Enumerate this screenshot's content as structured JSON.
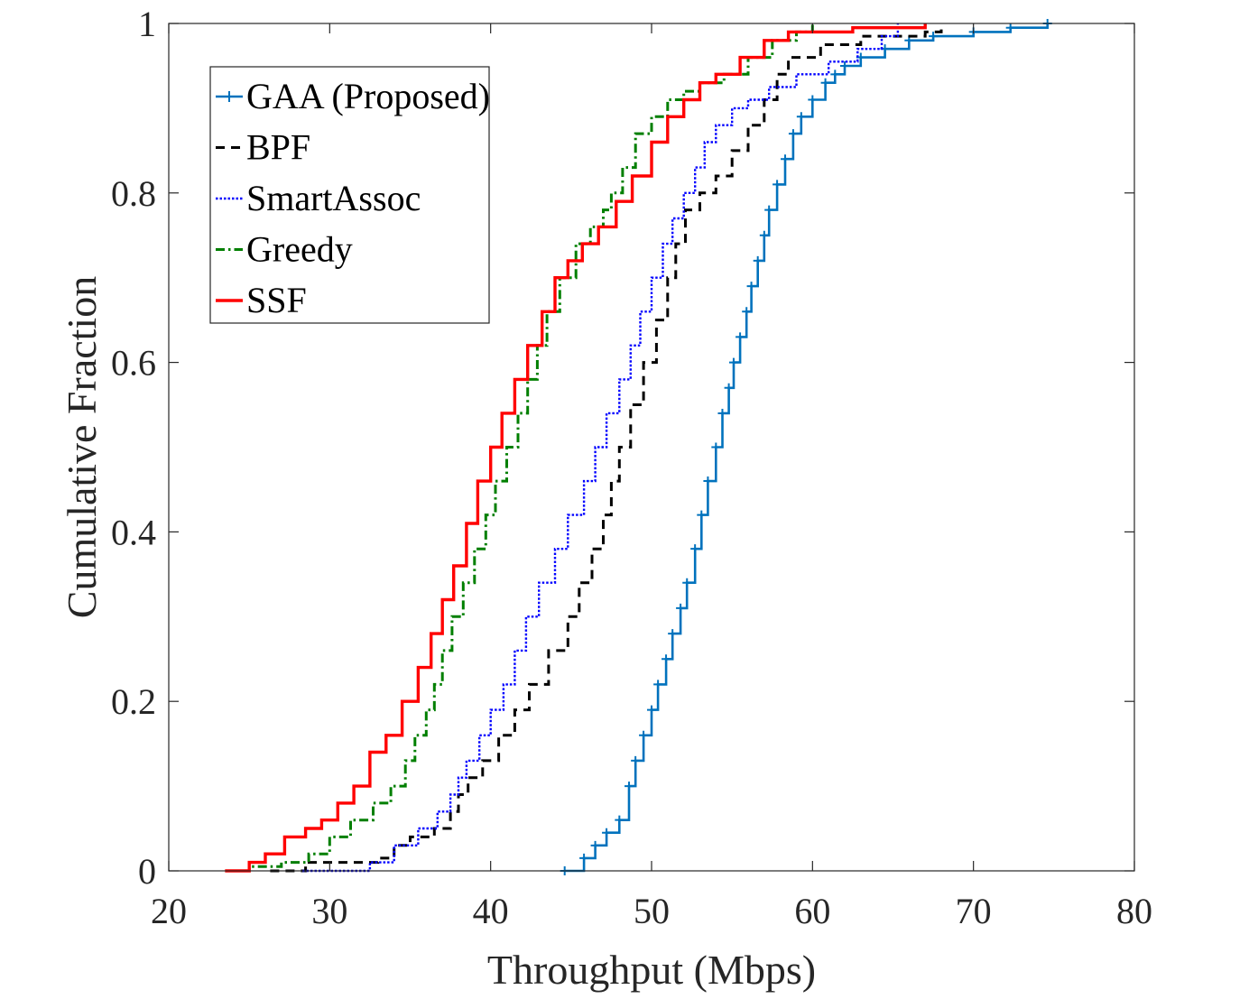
{
  "chart_data": {
    "type": "line",
    "title": "",
    "xlabel": "Throughput (Mbps)",
    "ylabel": "Cumulative Fraction",
    "xlim": [
      20,
      80
    ],
    "ylim": [
      0,
      1
    ],
    "xticks": [
      20,
      30,
      40,
      50,
      60,
      70,
      80
    ],
    "yticks": [
      0,
      0.2,
      0.4,
      0.6,
      0.8,
      1
    ],
    "xtick_labels": [
      "20",
      "30",
      "40",
      "50",
      "60",
      "70",
      "80"
    ],
    "ytick_labels": [
      "0",
      "0.2",
      "0.4",
      "0.6",
      "0.8",
      "1"
    ],
    "grid": false,
    "legend_position": "top-left",
    "series": [
      {
        "name": "GAA (Proposed)",
        "color": "#0072BD",
        "style": "solid-plus",
        "x": [
          44.6,
          45.8,
          46.5,
          47.2,
          48.0,
          48.6,
          49.0,
          49.5,
          50.0,
          50.4,
          50.9,
          51.3,
          51.8,
          52.2,
          52.7,
          53.1,
          53.5,
          54.0,
          54.4,
          54.8,
          55.1,
          55.5,
          55.9,
          56.2,
          56.6,
          57.0,
          57.3,
          57.8,
          58.3,
          58.8,
          59.3,
          60.0,
          60.8,
          61.4,
          62.0,
          63.0,
          64.5,
          66.0,
          67.5,
          70.0,
          72.3,
          74.6
        ],
        "y": [
          0.0,
          0.015,
          0.03,
          0.045,
          0.06,
          0.1,
          0.13,
          0.16,
          0.19,
          0.22,
          0.25,
          0.28,
          0.31,
          0.34,
          0.38,
          0.42,
          0.46,
          0.5,
          0.54,
          0.57,
          0.6,
          0.63,
          0.66,
          0.69,
          0.72,
          0.75,
          0.78,
          0.81,
          0.84,
          0.87,
          0.89,
          0.91,
          0.93,
          0.94,
          0.95,
          0.96,
          0.97,
          0.98,
          0.985,
          0.99,
          0.995,
          1.0
        ]
      },
      {
        "name": "BPF",
        "color": "#000000",
        "style": "dashed",
        "x": [
          26.3,
          28.5,
          31.0,
          33.0,
          34.0,
          35.0,
          36.5,
          37.5,
          38.0,
          38.6,
          39.5,
          40.5,
          41.5,
          42.4,
          43.6,
          44.8,
          45.5,
          46.3,
          47.0,
          47.5,
          48.0,
          48.7,
          49.5,
          50.3,
          51.0,
          51.5,
          52.1,
          53.0,
          54.0,
          55.0,
          56.0,
          57.0,
          57.8,
          58.5,
          60.5,
          63.0,
          67.0,
          68.0
        ],
        "y": [
          0.0,
          0.01,
          0.01,
          0.015,
          0.03,
          0.04,
          0.05,
          0.07,
          0.09,
          0.11,
          0.13,
          0.16,
          0.19,
          0.22,
          0.26,
          0.3,
          0.34,
          0.38,
          0.42,
          0.46,
          0.5,
          0.55,
          0.6,
          0.65,
          0.7,
          0.74,
          0.78,
          0.8,
          0.82,
          0.85,
          0.88,
          0.91,
          0.94,
          0.96,
          0.975,
          0.985,
          0.99,
          1.0
        ]
      },
      {
        "name": "SmartAssoc",
        "color": "#0000FF",
        "style": "dotted",
        "x": [
          28.3,
          32.5,
          34.0,
          35.5,
          36.7,
          37.5,
          38.0,
          38.5,
          39.3,
          40.0,
          40.8,
          41.5,
          42.2,
          43.0,
          44.0,
          44.8,
          45.8,
          46.5,
          47.2,
          48.0,
          48.7,
          49.3,
          50.0,
          50.7,
          51.3,
          52.0,
          52.7,
          53.3,
          54.0,
          55.0,
          56.0,
          57.3,
          59.0,
          61.0,
          62.8,
          64.3,
          65.3
        ],
        "y": [
          0.0,
          0.01,
          0.03,
          0.05,
          0.07,
          0.09,
          0.11,
          0.13,
          0.16,
          0.19,
          0.22,
          0.26,
          0.3,
          0.34,
          0.38,
          0.42,
          0.46,
          0.5,
          0.54,
          0.58,
          0.62,
          0.66,
          0.7,
          0.74,
          0.77,
          0.8,
          0.83,
          0.86,
          0.88,
          0.9,
          0.91,
          0.925,
          0.94,
          0.955,
          0.97,
          0.985,
          1.0
        ]
      },
      {
        "name": "Greedy",
        "color": "#007F00",
        "style": "dash-dot",
        "x": [
          23.5,
          25.0,
          27.0,
          28.7,
          30.0,
          31.3,
          32.7,
          33.8,
          34.7,
          35.3,
          36.0,
          36.5,
          37.0,
          37.6,
          38.3,
          39.0,
          39.7,
          40.3,
          41.0,
          41.7,
          42.3,
          42.9,
          43.5,
          44.3,
          45.3,
          46.2,
          47.0,
          47.5,
          48.2,
          49.0,
          50.0,
          51.0,
          52.0,
          53.0,
          54.5,
          56.0,
          57.5,
          59.0,
          60.0
        ],
        "y": [
          0.0,
          0.005,
          0.01,
          0.02,
          0.04,
          0.06,
          0.08,
          0.1,
          0.13,
          0.16,
          0.19,
          0.22,
          0.26,
          0.3,
          0.34,
          0.38,
          0.42,
          0.46,
          0.5,
          0.54,
          0.58,
          0.62,
          0.66,
          0.7,
          0.74,
          0.76,
          0.78,
          0.8,
          0.83,
          0.87,
          0.89,
          0.91,
          0.92,
          0.93,
          0.94,
          0.96,
          0.98,
          0.99,
          1.0
        ]
      },
      {
        "name": "SSF",
        "color": "#FF0000",
        "style": "solid",
        "x": [
          23.5,
          25.0,
          26.0,
          27.2,
          28.5,
          29.5,
          30.5,
          31.5,
          32.5,
          33.5,
          34.5,
          35.5,
          36.3,
          37.0,
          37.7,
          38.5,
          39.2,
          40.0,
          40.7,
          41.5,
          42.3,
          43.2,
          44.0,
          44.8,
          45.7,
          46.7,
          47.8,
          48.8,
          50.0,
          51.0,
          52.0,
          53.0,
          54.0,
          55.5,
          57.0,
          58.5,
          60.0,
          62.5,
          64.5,
          67.0
        ],
        "y": [
          0.0,
          0.01,
          0.02,
          0.04,
          0.05,
          0.06,
          0.08,
          0.1,
          0.14,
          0.16,
          0.2,
          0.24,
          0.28,
          0.32,
          0.36,
          0.41,
          0.46,
          0.5,
          0.54,
          0.58,
          0.62,
          0.66,
          0.7,
          0.72,
          0.74,
          0.76,
          0.79,
          0.82,
          0.86,
          0.89,
          0.91,
          0.93,
          0.94,
          0.96,
          0.98,
          0.99,
          0.99,
          0.995,
          0.995,
          1.0
        ]
      }
    ]
  }
}
